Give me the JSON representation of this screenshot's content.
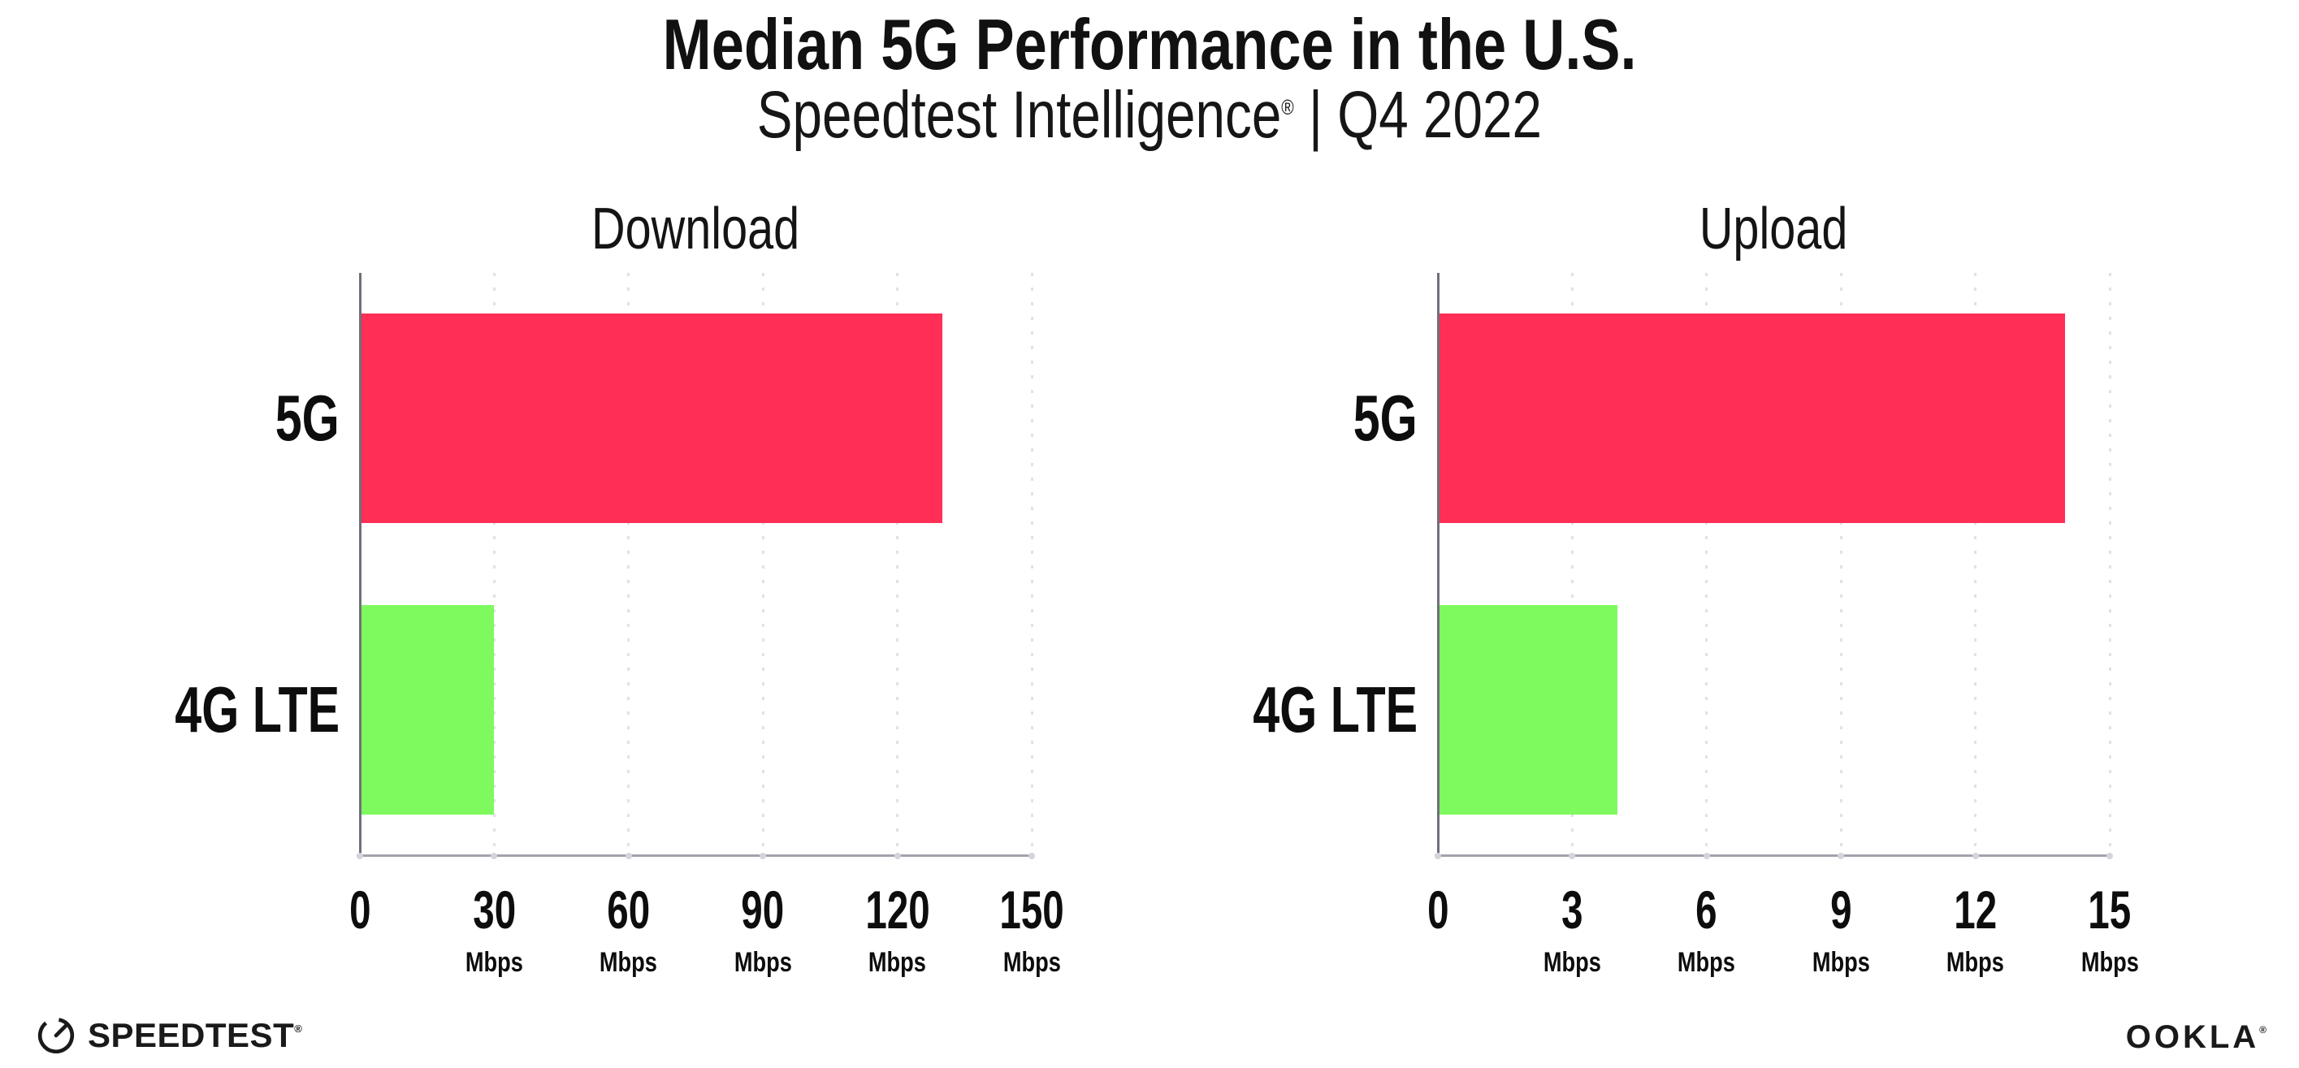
{
  "header": {
    "title": "Median 5G Performance in the U.S.",
    "subtitle_brand": "Speedtest Intelligence",
    "subtitle_reg": "®",
    "subtitle_rest": " | Q4 2022"
  },
  "chart_data": [
    {
      "type": "bar",
      "orientation": "horizontal",
      "title": "Download",
      "categories": [
        "5G",
        "4G LTE"
      ],
      "values": [
        130,
        30
      ],
      "unit": "Mbps",
      "xlabel": "",
      "xlim": [
        0,
        150
      ],
      "xticks": [
        0,
        30,
        60,
        90,
        120,
        150
      ],
      "bar_colors": [
        "#FF2E57",
        "#7EFA5F"
      ],
      "grid": "dotted-vertical",
      "legend": "none"
    },
    {
      "type": "bar",
      "orientation": "horizontal",
      "title": "Upload",
      "categories": [
        "5G",
        "4G LTE"
      ],
      "values": [
        14,
        4
      ],
      "unit": "Mbps",
      "xlabel": "",
      "xlim": [
        0,
        15
      ],
      "xticks": [
        0,
        3,
        6,
        9,
        12,
        15
      ],
      "bar_colors": [
        "#FF2E57",
        "#7EFA5F"
      ],
      "grid": "dotted-vertical",
      "legend": "none"
    }
  ],
  "footer": {
    "speedtest_label": "SPEEDTEST",
    "speedtest_reg": "®",
    "ookla_label": "OOKLA",
    "ookla_reg": "®"
  },
  "colors": {
    "bar_5g": "#FF2E57",
    "bar_4g": "#7EFA5F",
    "gridline": "#E0E1EA",
    "x_axis": "#A3A3AA",
    "y_axis": "#70707A",
    "text": "#111111"
  }
}
